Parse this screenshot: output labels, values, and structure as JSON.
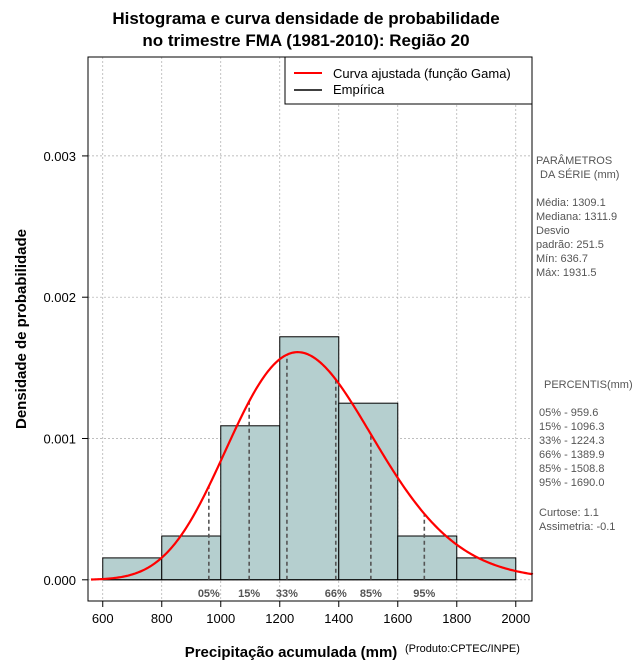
{
  "chart_data": {
    "type": "bar",
    "title_lines": [
      "Histograma e curva densidade de probabilidade",
      "no trimestre FMA (1981-2010): Região 20"
    ],
    "xlabel": "Precipitação acumulada (mm)",
    "ylabel": "Densidade de probabilidade",
    "credit": "(Produto:CPTEC/INPE)",
    "xlim": [
      550,
      2055
    ],
    "ylim": [
      -0.00015,
      0.0037
    ],
    "x_ticks": [
      600,
      800,
      1000,
      1200,
      1400,
      1600,
      1800,
      2000
    ],
    "x_tick_labels": [
      "600",
      "800",
      "1000",
      "1200",
      "1400",
      "1600",
      "1800",
      "2000"
    ],
    "y_ticks": [
      0,
      0.001,
      0.002,
      0.003
    ],
    "y_tick_labels": [
      "0.000",
      "0.001",
      "0.002",
      "0.003"
    ],
    "grid": true,
    "bins": [
      {
        "x0": 600,
        "x1": 800,
        "density": 0.000155
      },
      {
        "x0": 800,
        "x1": 1000,
        "density": 0.00031
      },
      {
        "x0": 1000,
        "x1": 1200,
        "density": 0.00109
      },
      {
        "x0": 1200,
        "x1": 1400,
        "density": 0.00172
      },
      {
        "x0": 1400,
        "x1": 1600,
        "density": 0.00125
      },
      {
        "x0": 1600,
        "x1": 1800,
        "density": 0.00031
      },
      {
        "x0": 1800,
        "x1": 2000,
        "density": 0.000155
      }
    ],
    "gamma_fit": {
      "mean": 1309.1,
      "sd": 251.5,
      "x_range": [
        560,
        2060
      ]
    },
    "percentile_markers": [
      {
        "label": "05%",
        "value": 959.6
      },
      {
        "label": "15%",
        "value": 1096.3
      },
      {
        "label": "33%",
        "value": 1224.3
      },
      {
        "label": "66%",
        "value": 1389.9
      },
      {
        "label": "85%",
        "value": 1508.8
      },
      {
        "label": "95%",
        "value": 1690.0
      }
    ],
    "legend": [
      {
        "label": "Curva ajustada (função Gama)",
        "color": "#ff0000"
      },
      {
        "label": "Empírica",
        "color": "#000000"
      }
    ],
    "legend_position": "top-right",
    "colors": {
      "bar_fill": "#b5cfcf",
      "bar_stroke": "#000000",
      "curve": "#ff0000",
      "grid": "#aaaaaa"
    }
  },
  "parameters": {
    "heading_line1": "PARÂMETROS",
    "heading_line2": "DA SÉRIE (mm)",
    "rows": [
      "Média:  1309.1",
      "Mediana:  1311.9",
      "Desvio",
      "padrão:  251.5",
      "Mín:  636.7",
      "Máx:  1931.5"
    ]
  },
  "percentiles": {
    "heading": "PERCENTIS(mm)",
    "rows": [
      "05% -   959.6",
      "15% -   1096.3",
      "33% -   1224.3",
      "66% -   1389.9",
      "85% -   1508.8",
      "95% -   1690.0"
    ],
    "stats": [
      "Curtose:  1.1",
      "Assimetria:  -0.1"
    ]
  }
}
